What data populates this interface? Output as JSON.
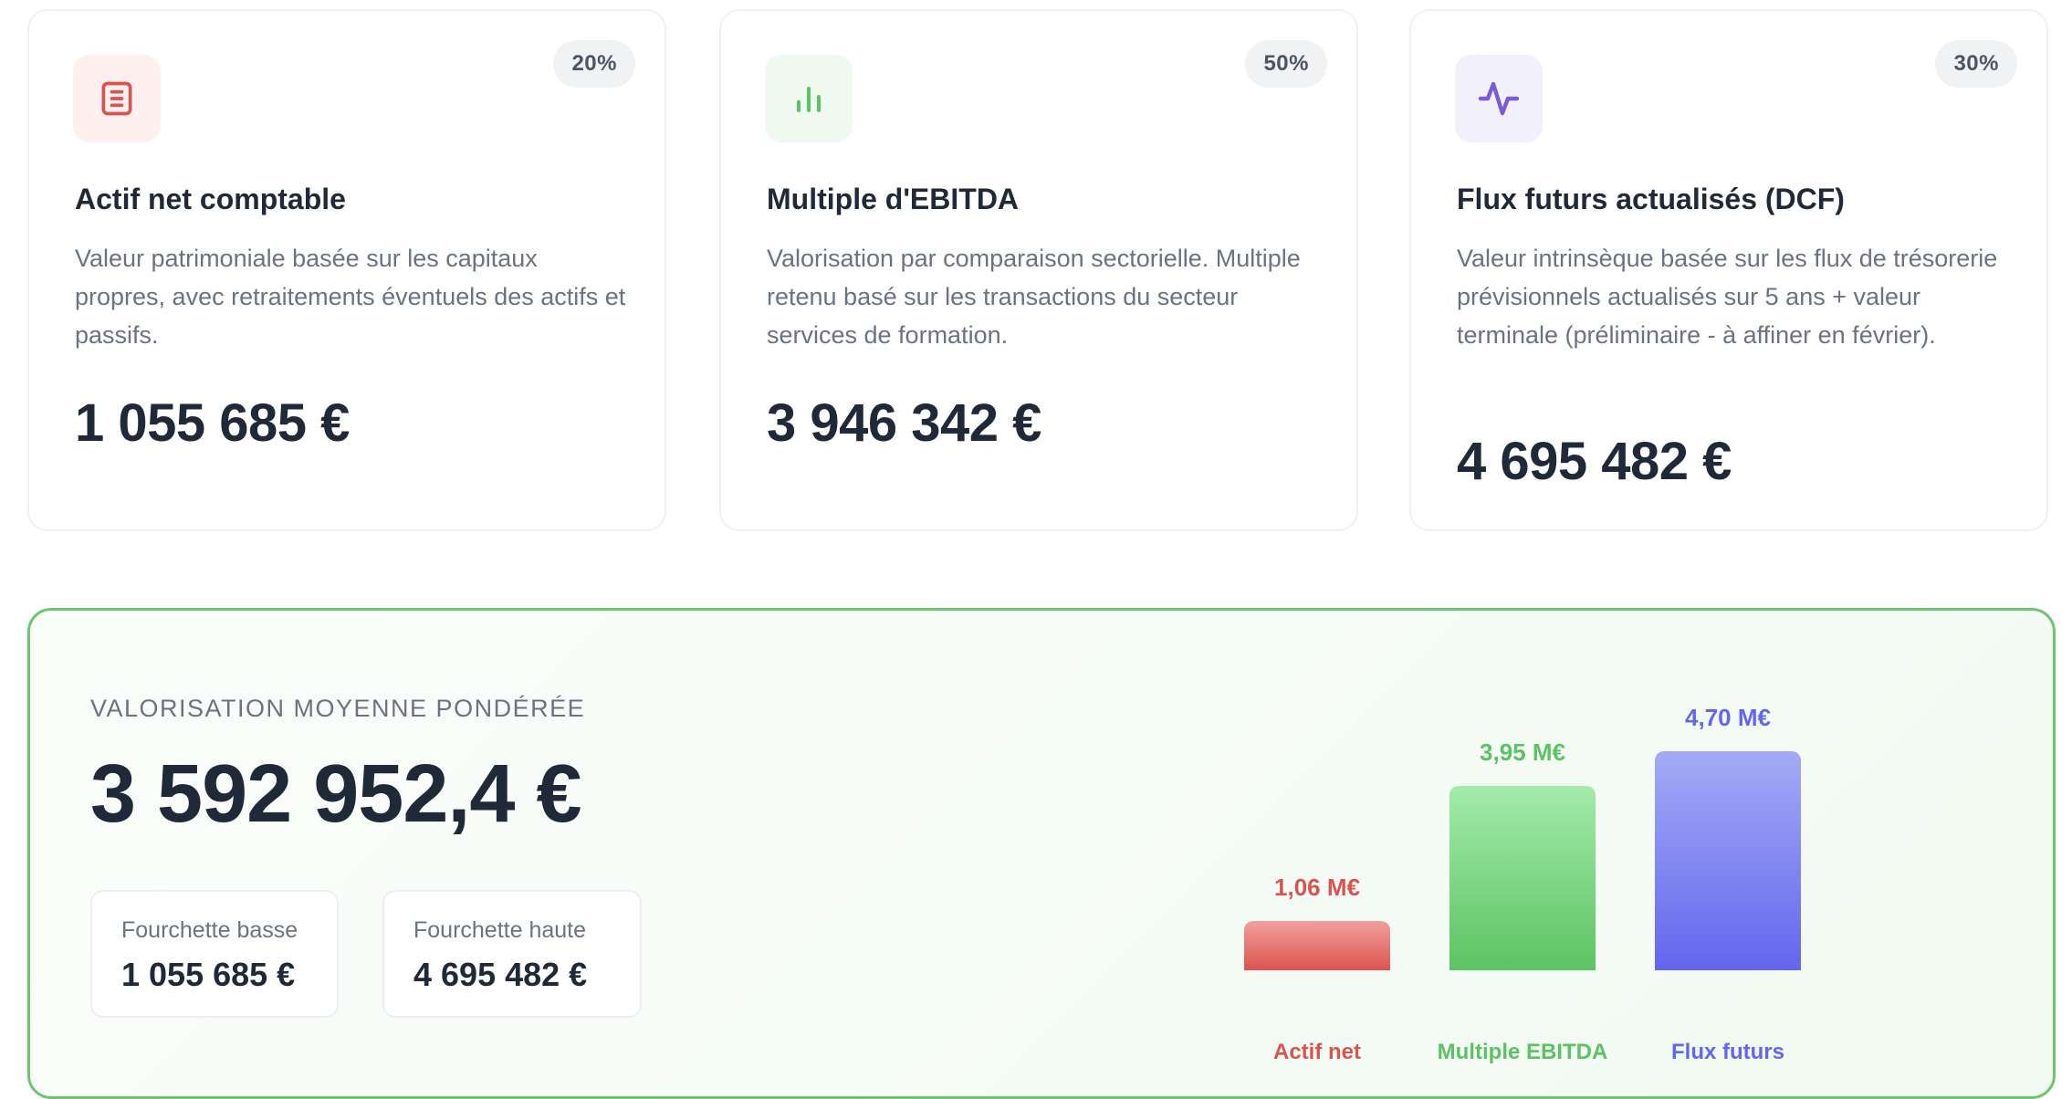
{
  "methods": [
    {
      "weight": "20%",
      "title": "Actif net comptable",
      "description": "Valeur patrimoniale basée sur les capitaux propres, avec retraitements éventuels des actifs et passifs.",
      "value": "1 055 685 €",
      "icon": "document-icon",
      "icon_color": "#d9534f",
      "icon_bg": "#fdf0ef"
    },
    {
      "weight": "50%",
      "title": "Multiple d'EBITDA",
      "description": "Valorisation par comparaison sectorielle. Multiple retenu basé sur les transactions du secteur services de formation.",
      "value": "3 946 342 €",
      "icon": "bar-chart-icon",
      "icon_color": "#5cc265",
      "icon_bg": "#eff9f0"
    },
    {
      "weight": "30%",
      "title": "Flux futurs actualisés (DCF)",
      "description": "Valeur intrinsèque basée sur les flux de trésorerie prévisionnels actualisés sur 5 ans + valeur terminale (préliminaire - à affiner en février).",
      "value": "4 695 482 €",
      "icon": "pulse-icon",
      "icon_color": "#7c5cd6",
      "icon_bg": "#f3f0fd"
    }
  ],
  "summary": {
    "label": "VALORISATION MOYENNE PONDÉRÉE",
    "value": "3 592 952,4 €",
    "low_label": "Fourchette basse",
    "low_value": "1 055 685 €",
    "high_label": "Fourchette haute",
    "high_value": "4 695 482 €"
  },
  "chart_data": {
    "type": "bar",
    "categories": [
      "Actif net",
      "Multiple EBITDA",
      "Flux futurs"
    ],
    "values": [
      1.06,
      3.95,
      4.7
    ],
    "value_labels": [
      "1,06 M€",
      "3,95 M€",
      "4,70 M€"
    ],
    "unit": "M€",
    "colors": [
      "#d9534f",
      "#5cc265",
      "#6366f1"
    ],
    "ylim": [
      0,
      4.7
    ],
    "grid": false
  }
}
